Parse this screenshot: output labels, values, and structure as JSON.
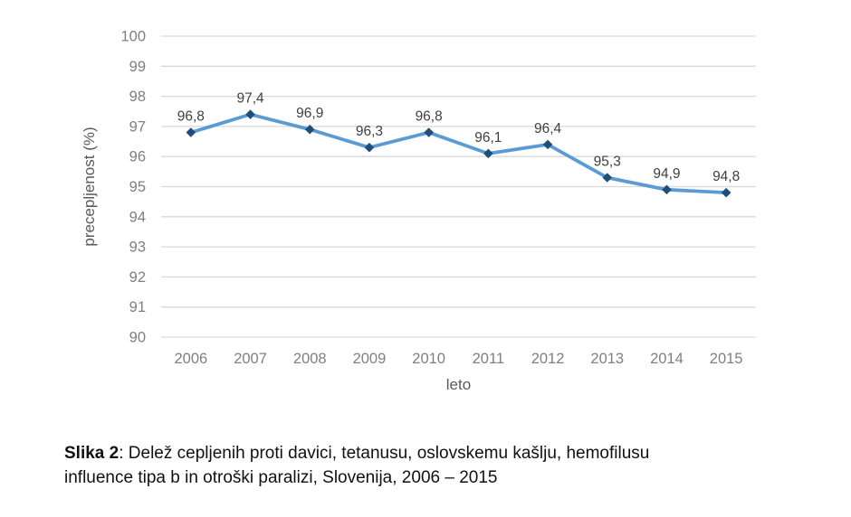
{
  "chart_data": {
    "type": "line",
    "title": "",
    "xlabel": "leto",
    "ylabel": "precepljenost (%)",
    "categories": [
      "2006",
      "2007",
      "2008",
      "2009",
      "2010",
      "2011",
      "2012",
      "2013",
      "2014",
      "2015"
    ],
    "series": [
      {
        "name": "precepljenost (%)",
        "values": [
          96.8,
          97.4,
          96.9,
          96.3,
          96.8,
          96.1,
          96.4,
          95.3,
          94.9,
          94.8
        ],
        "point_labels": [
          "96,8",
          "97,4",
          "96,9",
          "96,3",
          "96,8",
          "96,1",
          "96,4",
          "95,3",
          "94,9",
          "94,8"
        ]
      }
    ],
    "ylim": [
      90,
      100
    ],
    "yticks": [
      90,
      91,
      92,
      93,
      94,
      95,
      96,
      97,
      98,
      99,
      100
    ],
    "grid": true,
    "legend": "none",
    "colors": {
      "line": "#5B9BD5",
      "marker": "#1F4E79",
      "gridline": "#D9D9D9",
      "tick_label": "#7F7F7F",
      "axis_title": "#595959",
      "point_label": "#404040"
    }
  },
  "caption": {
    "label": "Slika 2",
    "separator": ": ",
    "line1": "Delež cepljenih proti davici, tetanusu, oslovskemu kašlju, hemofilusu",
    "line2": "influence tipa b in otroški paralizi, Slovenija, 2006 – 2015"
  }
}
